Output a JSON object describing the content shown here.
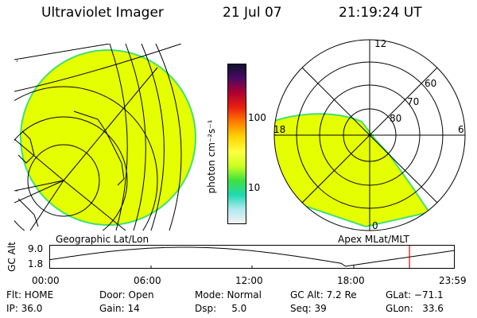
{
  "header": {
    "title": "Ultraviolet Imager",
    "date": "21 Jul 07",
    "time": "21:19:24 UT"
  },
  "geo_panel": {
    "label": "Geographic Lat/Lon"
  },
  "apex_panel": {
    "label": "Apex MLat/MLT",
    "mlt_labels": {
      "top": "12",
      "left": "18",
      "right": "6",
      "bottom": "0"
    },
    "lat_labels": [
      "60",
      "70",
      "80"
    ]
  },
  "colorbar": {
    "unit_label": "photon cm⁻²s⁻¹",
    "tick_labels": [
      "100",
      "10"
    ],
    "colors": [
      "#101030",
      "#4b0b62",
      "#b00030",
      "#e82010",
      "#ff7a00",
      "#ffd000",
      "#ffff40",
      "#c8ff20",
      "#40e040",
      "#20d8b0",
      "#b0e8f0",
      "#f2f2f2"
    ]
  },
  "altitude_plot": {
    "ylabel": "GC Alt",
    "y_ticks": [
      "9.0",
      "1.8"
    ],
    "x_ticks": [
      "00:00",
      "06:00",
      "12:00",
      "18:00",
      "23:59"
    ],
    "current_hour": 21.32,
    "cursor_color": "#e00000"
  },
  "footer": {
    "row1": [
      {
        "key": "flt",
        "text": "Flt: HOME"
      },
      {
        "key": "door",
        "text": "Door: Open"
      },
      {
        "key": "mode",
        "text": "Mode: Normal"
      },
      {
        "key": "gcalt",
        "text": "GC Alt: 7.2 Re"
      },
      {
        "key": "glat",
        "text": "GLat: −71.1"
      }
    ],
    "row2": [
      {
        "key": "ip",
        "text": "IP: 36.0"
      },
      {
        "key": "gain",
        "text": "Gain: 14"
      },
      {
        "key": "dsp",
        "text": "Dsp:     5.0"
      },
      {
        "key": "seq",
        "text": "Seq: 39"
      },
      {
        "key": "glon",
        "text": "GLon:   33.6"
      }
    ]
  },
  "colors": {
    "emission": "#e6ff00",
    "limb": "#40e070"
  }
}
